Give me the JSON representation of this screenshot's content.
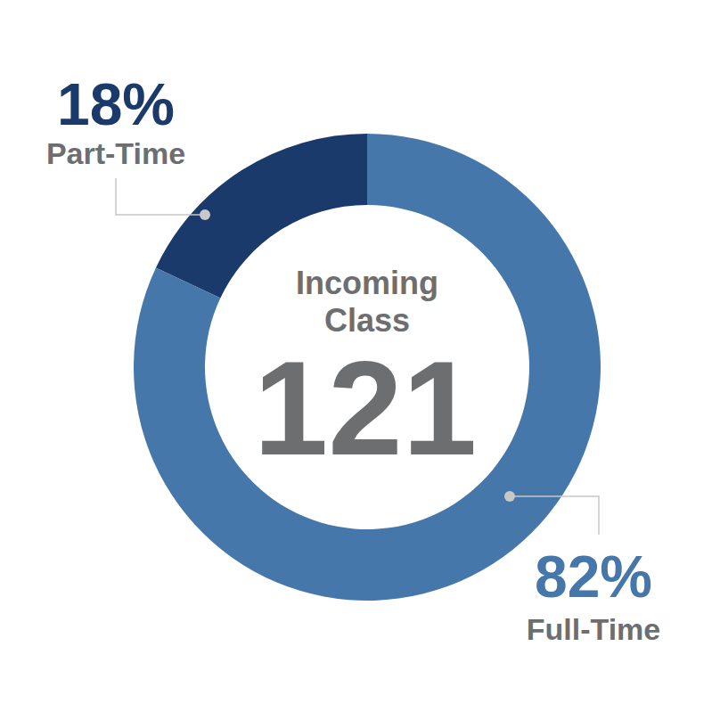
{
  "chart_data": {
    "type": "pie",
    "title": "Incoming Class",
    "total": 121,
    "categories": [
      "Part-Time",
      "Full-Time"
    ],
    "values": [
      18,
      82
    ],
    "value_labels": [
      "18%",
      "82%"
    ],
    "colors": [
      "#1a3a6b",
      "#4677aa"
    ],
    "data_labels": true
  }
}
